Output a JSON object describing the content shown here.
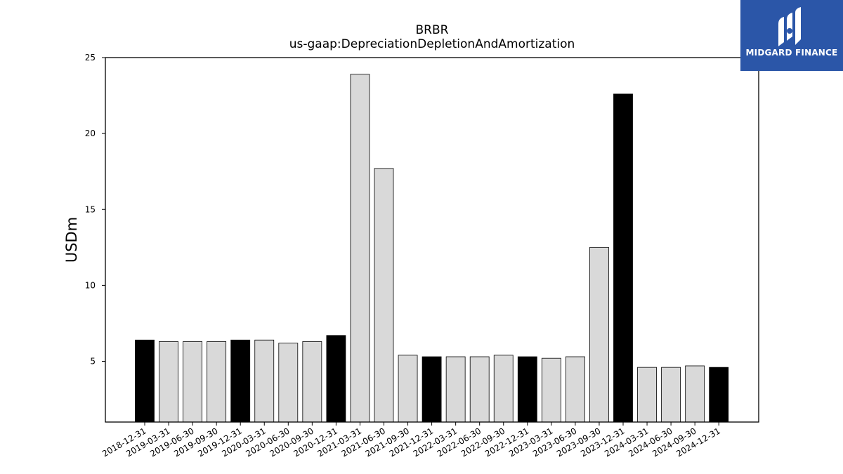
{
  "logo": {
    "text": "MIDGARD FINANCE",
    "background": "#2b56a8"
  },
  "chart_data": {
    "type": "bar",
    "title": "BRBR",
    "subtitle": "us-gaap:DepreciationDepletionAndAmortization",
    "ylabel": "USDm",
    "xlabel": "",
    "ylim": [
      1,
      25
    ],
    "yticks": [
      5,
      10,
      15,
      20,
      25
    ],
    "grid": false,
    "colors": {
      "annual": "#000000",
      "quarter": "#d9d9d9",
      "edge": "#000000"
    },
    "categories": [
      "2018-12-31",
      "2019-03-31",
      "2019-06-30",
      "2019-09-30",
      "2019-12-31",
      "2020-03-31",
      "2020-06-30",
      "2020-09-30",
      "2020-12-31",
      "2021-03-31",
      "2021-06-30",
      "2021-09-30",
      "2021-12-31",
      "2022-03-31",
      "2022-06-30",
      "2022-09-30",
      "2022-12-31",
      "2023-03-31",
      "2023-06-30",
      "2023-09-30",
      "2023-12-31",
      "2024-03-31",
      "2024-06-30",
      "2024-09-30",
      "2024-12-31"
    ],
    "values": [
      6.4,
      6.3,
      6.3,
      6.3,
      6.4,
      6.4,
      6.2,
      6.3,
      6.7,
      23.9,
      17.7,
      5.4,
      5.3,
      5.3,
      5.3,
      5.4,
      5.3,
      5.2,
      5.3,
      12.5,
      22.6,
      4.6,
      4.6,
      4.7,
      4.6
    ],
    "annual": [
      true,
      false,
      false,
      false,
      true,
      false,
      false,
      false,
      true,
      false,
      false,
      false,
      true,
      false,
      false,
      false,
      true,
      false,
      false,
      false,
      true,
      false,
      false,
      false,
      true
    ]
  }
}
